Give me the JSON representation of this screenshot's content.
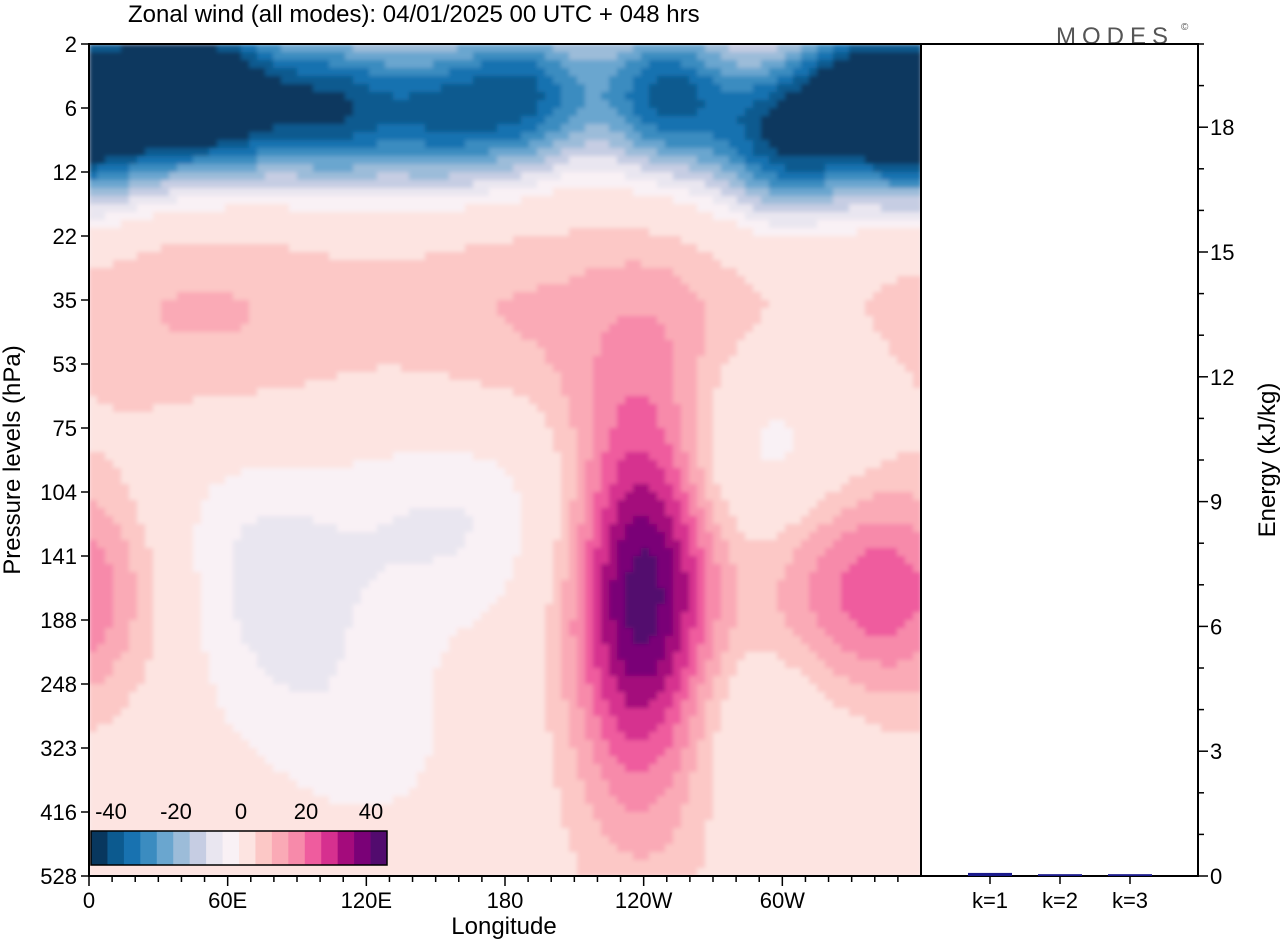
{
  "title": "Zonal wind (all modes):  04/01/2025  00 UTC  + 048 hrs",
  "brand": "MODES",
  "brand_mark": "©",
  "colors": {
    "neg": [
      "#08375e",
      "#0c5a8f",
      "#1872b0",
      "#3b8cc0",
      "#6aa6cf",
      "#9cbcd9",
      "#c6cde3",
      "#e9e6f0"
    ],
    "zero": "#f9f1f5",
    "pos": [
      "#fde4e1",
      "#fcc8c6",
      "#faaab6",
      "#f78aaa",
      "#ef5c9e",
      "#d6308f",
      "#a40b7c",
      "#7a0177",
      "#520b6e"
    ]
  },
  "chart_data": [
    {
      "type": "heatmap",
      "title": "Zonal wind (all modes):  04/01/2025  00 UTC  + 048 hrs",
      "xlabel": "Longitude",
      "ylabel": "Pressure levels (hPa)",
      "x_ticks": [
        "0",
        "60E",
        "120E",
        "180",
        "120W",
        "60W"
      ],
      "x_tick_lon": [
        0,
        60,
        120,
        180,
        240,
        300
      ],
      "xlim": [
        0,
        360
      ],
      "y_levels": [
        "2",
        "6",
        "12",
        "22",
        "35",
        "53",
        "75",
        "104",
        "141",
        "188",
        "248",
        "323",
        "416",
        "528"
      ],
      "colorbar": {
        "ticks": [
          "-40",
          "-20",
          "0",
          "20",
          "40"
        ],
        "levels": [
          -45,
          -40,
          -35,
          -30,
          -25,
          -20,
          -15,
          -10,
          -5,
          5,
          10,
          15,
          20,
          25,
          30,
          35,
          40,
          45
        ]
      },
      "features": [
        {
          "lon": 0,
          "level": 1.4,
          "value": -34
        },
        {
          "lon": 30,
          "level": 0.6,
          "value": -44
        },
        {
          "lon": 60,
          "level": 0.9,
          "value": -42
        },
        {
          "lon": 105,
          "level": 1.0,
          "value": -40
        },
        {
          "lon": 150,
          "level": 1.1,
          "value": -33
        },
        {
          "lon": 190,
          "level": 0.8,
          "value": -38
        },
        {
          "lon": 250,
          "level": 0.8,
          "value": -42
        },
        {
          "lon": 300,
          "level": 1.5,
          "value": -40
        },
        {
          "lon": 335,
          "level": 0.7,
          "value": -43
        },
        {
          "lon": 180,
          "level": 4.3,
          "value": 8
        },
        {
          "lon": 270,
          "level": 4.5,
          "value": 7
        },
        {
          "lon": 80,
          "level": 4.3,
          "value": 6
        },
        {
          "lon": 20,
          "level": 4.2,
          "value": 6
        },
        {
          "lon": 240,
          "level": 8.6,
          "value": 44
        },
        {
          "lon": 340,
          "level": 8.5,
          "value": 25
        },
        {
          "lon": 290,
          "level": 6.4,
          "value": -14
        },
        {
          "lon": 160,
          "level": 7.4,
          "value": -12
        },
        {
          "lon": 65,
          "level": 7.7,
          "value": -11
        },
        {
          "lon": 80,
          "level": 9.6,
          "value": -8
        },
        {
          "lon": 285,
          "level": 10.3,
          "value": -9
        },
        {
          "lon": 125,
          "level": 11.2,
          "value": -7
        }
      ]
    },
    {
      "type": "bar",
      "ylabel": "Energy (kJ/kg)",
      "categories": [
        "k=1",
        "k=2",
        "k=3"
      ],
      "values": [
        0.05,
        0.02,
        0.02
      ],
      "ylim": [
        0,
        20
      ],
      "y_ticks": [
        "0",
        "3",
        "6",
        "9",
        "12",
        "15",
        "18"
      ],
      "bar_color": "#1a1a8c"
    }
  ]
}
